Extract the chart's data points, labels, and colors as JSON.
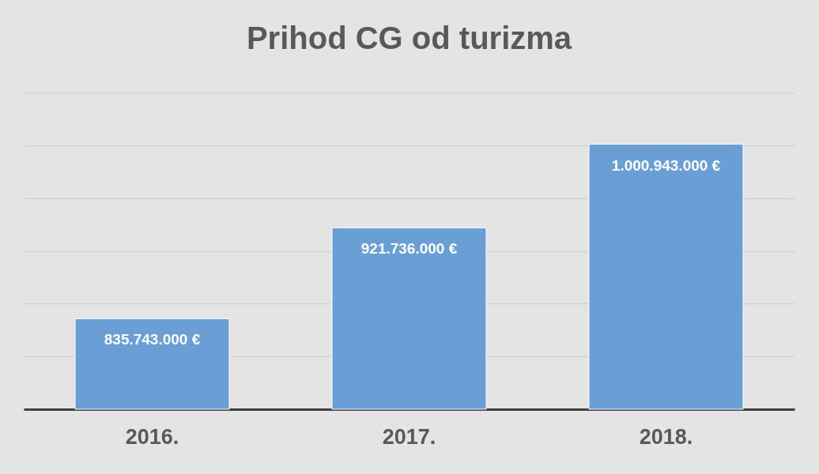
{
  "chart_data": {
    "type": "bar",
    "title": "Prihod CG od turizma",
    "categories": [
      "2016.",
      "2017.",
      "2018."
    ],
    "values": [
      835743000,
      921736000,
      1000943000
    ],
    "value_labels": [
      "835.743.000 €",
      "921.736.000 €",
      "1.000.943.000 €"
    ],
    "color": "#6a9fd6",
    "ylim": [
      750000000,
      1050000000
    ],
    "yticks": [
      {
        "value": 750000000,
        "label": null
      },
      {
        "value": 800000000,
        "label": null
      },
      {
        "value": 850000000,
        "label": null
      },
      {
        "value": 900000000,
        "label": null
      },
      {
        "value": 950000000,
        "label": null
      },
      {
        "value": 1000000000,
        "label": null
      },
      {
        "value": 1050000000,
        "label": null
      }
    ],
    "grid": true,
    "tick_labels": "x"
  }
}
